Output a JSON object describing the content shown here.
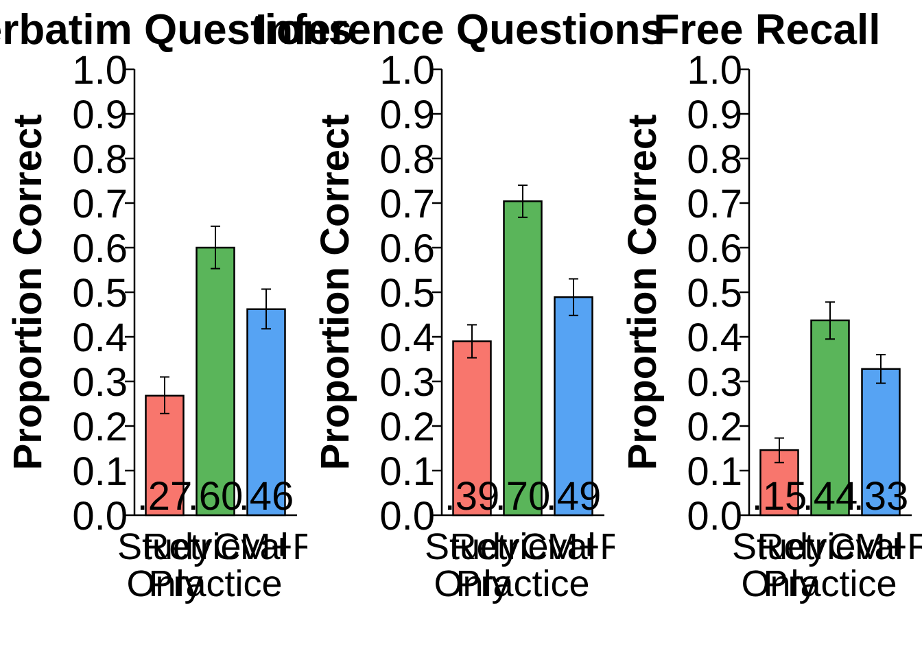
{
  "chart_data": [
    {
      "type": "bar",
      "title": "Verbatim Questions",
      "ylabel": "Proportion Correct",
      "xlabel": "",
      "ylim": [
        0,
        1
      ],
      "yticks": [
        "0.0",
        "0.1",
        "0.2",
        "0.3",
        "0.4",
        "0.5",
        "0.6",
        "0.7",
        "0.8",
        "0.9",
        "1.0"
      ],
      "categories": [
        "Study Only",
        "Retrieval Practice",
        "CM+R"
      ],
      "category_lines": [
        [
          "Study",
          "Only"
        ],
        [
          "Retrieval",
          "Practice"
        ],
        [
          "CM+R"
        ]
      ],
      "colors": [
        "#f8766d",
        "#5ab55a",
        "#56a3f3"
      ],
      "values": [
        0.268,
        0.6,
        0.462
      ],
      "error_low": [
        0.228,
        0.553,
        0.418
      ],
      "error_high": [
        0.31,
        0.648,
        0.507
      ],
      "data_labels": [
        ".27",
        ".60",
        ".46"
      ],
      "grid": false
    },
    {
      "type": "bar",
      "title": "Inference Questions",
      "ylabel": "Proportion Correct",
      "xlabel": "",
      "ylim": [
        0,
        1
      ],
      "yticks": [
        "0.0",
        "0.1",
        "0.2",
        "0.3",
        "0.4",
        "0.5",
        "0.6",
        "0.7",
        "0.8",
        "0.9",
        "1.0"
      ],
      "categories": [
        "Study Only",
        "Retrieval Practice",
        "CM+R"
      ],
      "category_lines": [
        [
          "Study",
          "Only"
        ],
        [
          "Retrieval",
          "Practice"
        ],
        [
          "CM+R"
        ]
      ],
      "colors": [
        "#f8766d",
        "#5ab55a",
        "#56a3f3"
      ],
      "values": [
        0.39,
        0.704,
        0.489
      ],
      "error_low": [
        0.353,
        0.668,
        0.448
      ],
      "error_high": [
        0.427,
        0.74,
        0.53
      ],
      "data_labels": [
        ".39",
        ".70",
        ".49"
      ],
      "grid": false
    },
    {
      "type": "bar",
      "title": "Free Recall",
      "ylabel": "Proportion Correct",
      "xlabel": "",
      "ylim": [
        0,
        1
      ],
      "yticks": [
        "0.0",
        "0.1",
        "0.2",
        "0.3",
        "0.4",
        "0.5",
        "0.6",
        "0.7",
        "0.8",
        "0.9",
        "1.0"
      ],
      "categories": [
        "Study Only",
        "Retrieval Practice",
        "CM+R"
      ],
      "category_lines": [
        [
          "Study",
          "Only"
        ],
        [
          "Retrieval",
          "Practice"
        ],
        [
          "CM+R"
        ]
      ],
      "colors": [
        "#f8766d",
        "#5ab55a",
        "#56a3f3"
      ],
      "values": [
        0.146,
        0.437,
        0.328
      ],
      "error_low": [
        0.118,
        0.395,
        0.296
      ],
      "error_high": [
        0.173,
        0.478,
        0.36
      ],
      "data_labels": [
        ".15",
        ".44",
        ".33"
      ],
      "grid": false
    }
  ]
}
